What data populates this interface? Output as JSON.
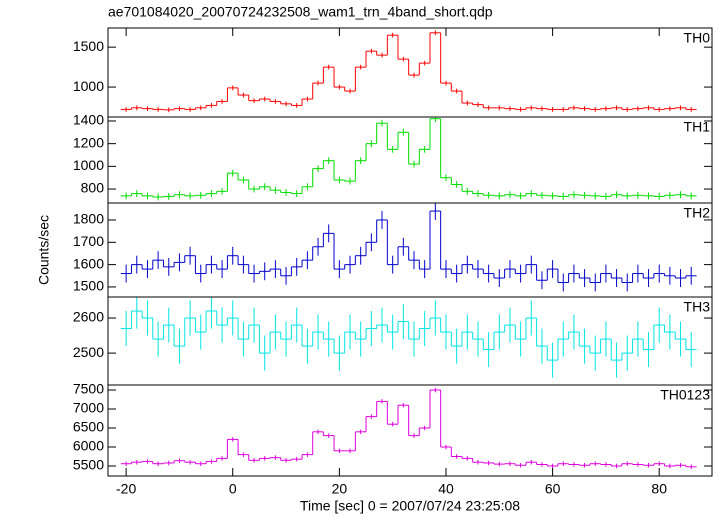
{
  "chart_data": [
    {
      "type": "histogram",
      "title": "ae701084020_20070724232508_wam1_trn_4band_short.qdp",
      "label": "TH0",
      "color": "#ff0000",
      "error": 30,
      "bins": [
        -21,
        -19,
        -17,
        -15,
        -13,
        -11,
        -9,
        -7,
        -5,
        -3,
        -1,
        1,
        3,
        5,
        7,
        9,
        11,
        13,
        15,
        17,
        19,
        21,
        23,
        25,
        27,
        29,
        31,
        33,
        35,
        37,
        39,
        41,
        43,
        45,
        47,
        49,
        51,
        53,
        55,
        57,
        59,
        61,
        63,
        65,
        67,
        69,
        71,
        73,
        75,
        77,
        79,
        81,
        83,
        85,
        87
      ],
      "values": [
        720,
        740,
        730,
        720,
        715,
        730,
        720,
        740,
        770,
        820,
        990,
        900,
        830,
        850,
        820,
        790,
        770,
        850,
        1050,
        1250,
        1000,
        950,
        1250,
        1450,
        1400,
        1650,
        1350,
        1150,
        1300,
        1680,
        1050,
        950,
        800,
        780,
        740,
        740,
        730,
        720,
        740,
        730,
        720,
        720,
        740,
        730,
        720,
        730,
        740,
        720,
        730,
        740,
        720,
        730,
        740,
        720
      ],
      "xlim": [
        -23.4,
        89.9
      ],
      "ylim": [
        625,
        1740
      ],
      "yticks": [
        1000,
        1500
      ]
    },
    {
      "type": "histogram",
      "label": "TH1",
      "color": "#00dd00",
      "error": 30,
      "bins": [
        -21,
        -19,
        -17,
        -15,
        -13,
        -11,
        -9,
        -7,
        -5,
        -3,
        -1,
        1,
        3,
        5,
        7,
        9,
        11,
        13,
        15,
        17,
        19,
        21,
        23,
        25,
        27,
        29,
        31,
        33,
        35,
        37,
        39,
        41,
        43,
        45,
        47,
        49,
        51,
        53,
        55,
        57,
        59,
        61,
        63,
        65,
        67,
        69,
        71,
        73,
        75,
        77,
        79,
        81,
        83,
        85,
        87
      ],
      "values": [
        740,
        760,
        740,
        730,
        735,
        750,
        740,
        745,
        760,
        780,
        940,
        880,
        800,
        820,
        790,
        770,
        760,
        820,
        980,
        1050,
        880,
        870,
        1050,
        1200,
        1380,
        1150,
        1300,
        1020,
        1150,
        1420,
        900,
        840,
        780,
        760,
        745,
        740,
        750,
        740,
        760,
        745,
        740,
        735,
        750,
        745,
        740,
        735,
        750,
        740,
        745,
        740,
        735,
        745,
        750,
        740
      ],
      "xlim": [
        -23.4,
        89.9
      ],
      "ylim": [
        677,
        1435
      ],
      "yticks": [
        800,
        1000,
        1200,
        1400
      ]
    },
    {
      "type": "histogram",
      "label": "TH2",
      "ylabel": "Counts/sec",
      "color": "#0000cc",
      "error": 40,
      "bins": [
        -21,
        -19,
        -17,
        -15,
        -13,
        -11,
        -9,
        -7,
        -5,
        -3,
        -1,
        1,
        3,
        5,
        7,
        9,
        11,
        13,
        15,
        17,
        19,
        21,
        23,
        25,
        27,
        29,
        31,
        33,
        35,
        37,
        39,
        41,
        43,
        45,
        47,
        49,
        51,
        53,
        55,
        57,
        59,
        61,
        63,
        65,
        67,
        69,
        71,
        73,
        75,
        77,
        79,
        81,
        83,
        85,
        87
      ],
      "values": [
        1560,
        1600,
        1580,
        1620,
        1590,
        1610,
        1640,
        1560,
        1600,
        1580,
        1640,
        1600,
        1560,
        1570,
        1580,
        1550,
        1590,
        1620,
        1680,
        1740,
        1580,
        1600,
        1640,
        1700,
        1800,
        1600,
        1680,
        1620,
        1580,
        1840,
        1580,
        1560,
        1600,
        1580,
        1560,
        1540,
        1580,
        1560,
        1600,
        1530,
        1580,
        1520,
        1560,
        1540,
        1520,
        1560,
        1540,
        1520,
        1560,
        1540,
        1560,
        1550,
        1540,
        1550
      ],
      "xlim": [
        -23.4,
        89.9
      ],
      "ylim": [
        1455,
        1876
      ],
      "yticks": [
        1500,
        1600,
        1700,
        1800
      ]
    },
    {
      "type": "histogram",
      "label": "TH3",
      "color": "#00e5e5",
      "error": 50,
      "bins": [
        -21,
        -19,
        -17,
        -15,
        -13,
        -11,
        -9,
        -7,
        -5,
        -3,
        -1,
        1,
        3,
        5,
        7,
        9,
        11,
        13,
        15,
        17,
        19,
        21,
        23,
        25,
        27,
        29,
        31,
        33,
        35,
        37,
        39,
        41,
        43,
        45,
        47,
        49,
        51,
        53,
        55,
        57,
        59,
        61,
        63,
        65,
        67,
        69,
        71,
        73,
        75,
        77,
        79,
        81,
        83,
        85,
        87
      ],
      "values": [
        2570,
        2620,
        2600,
        2540,
        2580,
        2520,
        2600,
        2560,
        2620,
        2580,
        2600,
        2540,
        2580,
        2500,
        2560,
        2540,
        2580,
        2520,
        2560,
        2540,
        2500,
        2560,
        2540,
        2570,
        2580,
        2560,
        2590,
        2540,
        2570,
        2600,
        2560,
        2520,
        2560,
        2540,
        2510,
        2560,
        2580,
        2540,
        2600,
        2520,
        2480,
        2540,
        2560,
        2520,
        2500,
        2540,
        2480,
        2500,
        2540,
        2510,
        2580,
        2560,
        2540,
        2510
      ],
      "xlim": [
        -23.4,
        89.9
      ],
      "ylim": [
        2409,
        2660
      ],
      "yticks": [
        2500,
        2600
      ]
    },
    {
      "type": "histogram",
      "label": "TH0123",
      "xlabel": "Time [sec] 0 = 2007/07/24 23:25:08",
      "color": "#dd00dd",
      "error": 60,
      "bins": [
        -21,
        -19,
        -17,
        -15,
        -13,
        -11,
        -9,
        -7,
        -5,
        -3,
        -1,
        1,
        3,
        5,
        7,
        9,
        11,
        13,
        15,
        17,
        19,
        21,
        23,
        25,
        27,
        29,
        31,
        33,
        35,
        37,
        39,
        41,
        43,
        45,
        47,
        49,
        51,
        53,
        55,
        57,
        59,
        61,
        63,
        65,
        67,
        69,
        71,
        73,
        75,
        77,
        79,
        81,
        83,
        85,
        87
      ],
      "values": [
        5560,
        5600,
        5620,
        5560,
        5580,
        5640,
        5600,
        5560,
        5620,
        5700,
        6200,
        5800,
        5650,
        5700,
        5720,
        5650,
        5680,
        5800,
        6400,
        6300,
        5900,
        5900,
        6400,
        6800,
        7200,
        6600,
        7100,
        6300,
        6500,
        7500,
        6000,
        5750,
        5700,
        5600,
        5580,
        5550,
        5560,
        5520,
        5600,
        5540,
        5500,
        5560,
        5540,
        5520,
        5560,
        5540,
        5500,
        5560,
        5540,
        5520,
        5560,
        5500,
        5520,
        5480
      ],
      "xlim": [
        -23.4,
        89.9
      ],
      "ylim": [
        5237,
        7632
      ],
      "yticks": [
        5500,
        6000,
        6500,
        7000,
        7500
      ],
      "xticks": [
        -20,
        0,
        20,
        40,
        60,
        80
      ]
    }
  ]
}
